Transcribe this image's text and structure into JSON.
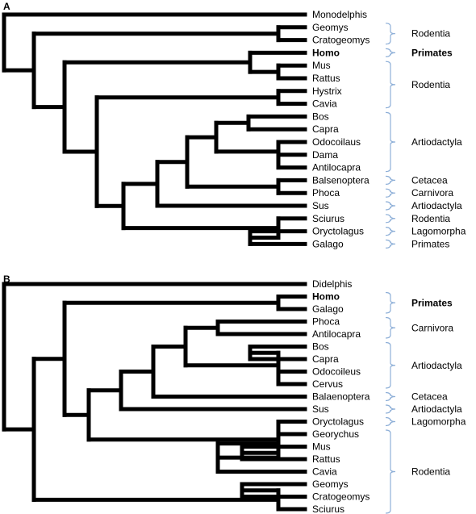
{
  "panels": [
    {
      "label": "A",
      "taxa": [
        {
          "name": "Monodelphis"
        },
        {
          "name": "Geomys"
        },
        {
          "name": "Cratogeomys"
        },
        {
          "name": "Homo",
          "bold": true
        },
        {
          "name": "Mus"
        },
        {
          "name": "Rattus"
        },
        {
          "name": "Hystrix"
        },
        {
          "name": "Cavia"
        },
        {
          "name": "Bos"
        },
        {
          "name": "Capra"
        },
        {
          "name": "Odocoilaus"
        },
        {
          "name": "Dama"
        },
        {
          "name": "Antilocapra"
        },
        {
          "name": "Balsenoptera"
        },
        {
          "name": "Phoca"
        },
        {
          "name": "Sus"
        },
        {
          "name": "Sciurus"
        },
        {
          "name": "Oryctolagus"
        },
        {
          "name": "Galago"
        }
      ],
      "groups": [
        {
          "name": "Rodentia",
          "from": 1,
          "to": 2
        },
        {
          "name": "Primates",
          "from": 3,
          "to": 3,
          "bold": true
        },
        {
          "name": "Rodentia",
          "from": 4,
          "to": 7
        },
        {
          "name": "Artiodactyla",
          "from": 8,
          "to": 12
        },
        {
          "name": "Cetacea",
          "from": 13,
          "to": 13
        },
        {
          "name": "Carnivora",
          "from": 14,
          "to": 14
        },
        {
          "name": "Artiodactyla",
          "from": 15,
          "to": 15
        },
        {
          "name": "Rodentia",
          "from": 16,
          "to": 16
        },
        {
          "name": "Lagomorpha",
          "from": 17,
          "to": 17
        },
        {
          "name": "Primates",
          "from": 18,
          "to": 18
        }
      ],
      "tree": [
        0,
        [
          [
            1,
            2
          ],
          [
            [
              3,
              [
                4,
                5
              ]
            ],
            [
              [
                6,
                7
              ],
              [
                [
                  [
                    [
                      [
                        8,
                        9
                      ],
                      [
                        10,
                        [
                          11,
                          12
                        ]
                      ]
                    ],
                    [
                      13,
                      14
                    ]
                  ],
                  15
                ],
                [
                  16,
                  [
                    17,
                    18
                  ]
                ]
              ]
            ]
          ]
        ]
      ]
    },
    {
      "label": "B",
      "taxa": [
        {
          "name": "Didelphis"
        },
        {
          "name": "Homo",
          "bold": true
        },
        {
          "name": "Galago"
        },
        {
          "name": "Phoca"
        },
        {
          "name": "Antilocapra"
        },
        {
          "name": "Bos"
        },
        {
          "name": "Capra"
        },
        {
          "name": "Odocoileus"
        },
        {
          "name": "Cervus"
        },
        {
          "name": "Balaenoptera"
        },
        {
          "name": "Sus"
        },
        {
          "name": "Oryctolagus"
        },
        {
          "name": "Georychus"
        },
        {
          "name": "Mus"
        },
        {
          "name": "Rattus"
        },
        {
          "name": "Cavia"
        },
        {
          "name": "Geomys"
        },
        {
          "name": "Cratogeomys"
        },
        {
          "name": "Sciurus"
        }
      ],
      "groups": [
        {
          "name": "Primates",
          "from": 1,
          "to": 2,
          "bold": true
        },
        {
          "name": "Carnivora",
          "from": 3,
          "to": 4
        },
        {
          "name": "Artiodactyla",
          "from": 5,
          "to": 8
        },
        {
          "name": "Cetacea",
          "from": 9,
          "to": 9
        },
        {
          "name": "Artiodactyla",
          "from": 10,
          "to": 10
        },
        {
          "name": "Lagomorpha",
          "from": 11,
          "to": 11
        },
        {
          "name": "Rodentia",
          "from": 12,
          "to": 18
        }
      ],
      "tree": [
        0,
        [
          [
            [
              1,
              2
            ],
            [
              [
                [
                  [
                    [
                      3,
                      4
                    ],
                    [
                      [
                        5,
                        6
                      ],
                      [
                        7,
                        8
                      ]
                    ]
                  ],
                  9
                ],
                10
              ],
              [
                11,
                [
                  [
                    12,
                    [
                      13,
                      14
                    ]
                  ],
                  15
                ]
              ]
            ]
          ],
          [
            [
              16,
              17
            ],
            18
          ]
        ]
      ]
    }
  ]
}
